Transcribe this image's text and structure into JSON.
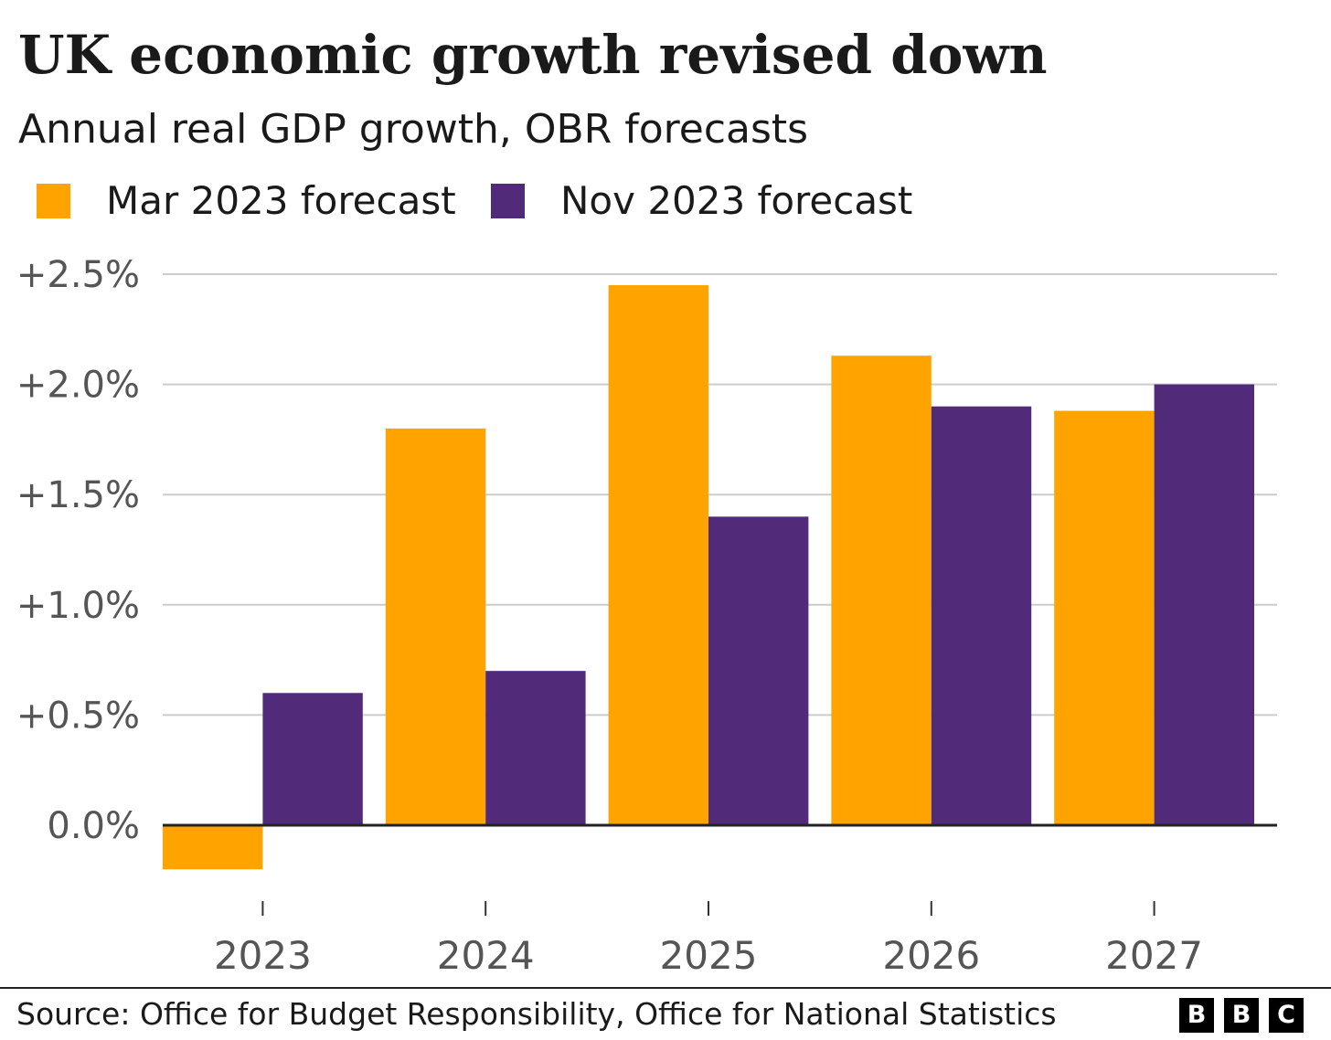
{
  "title": "UK economic growth revised down",
  "subtitle": "Annual real GDP growth, OBR forecasts",
  "source": "Source: Office for Budget Responsibility, Office for National Statistics",
  "logo": {
    "letters": [
      "B",
      "B",
      "C"
    ]
  },
  "chart_data": {
    "type": "bar",
    "categories": [
      "2023",
      "2024",
      "2025",
      "2026",
      "2027"
    ],
    "series": [
      {
        "name": "Mar 2023 forecast",
        "color": "#FFA300",
        "values": [
          -0.2,
          1.8,
          2.45,
          2.13,
          1.88
        ]
      },
      {
        "name": "Nov 2023 forecast",
        "color": "#522A7A",
        "values": [
          0.6,
          0.7,
          1.4,
          1.9,
          2.0
        ]
      }
    ],
    "yticks": [
      {
        "value": 0.0,
        "label": "0.0%"
      },
      {
        "value": 0.5,
        "label": "+0.5%"
      },
      {
        "value": 1.0,
        "label": "+1.0%"
      },
      {
        "value": 1.5,
        "label": "+1.5%"
      },
      {
        "value": 2.0,
        "label": "+2.0%"
      },
      {
        "value": 2.5,
        "label": "+2.5%"
      }
    ],
    "ylim": [
      -0.35,
      2.5
    ],
    "grid": true,
    "legend_position": "top-left"
  }
}
